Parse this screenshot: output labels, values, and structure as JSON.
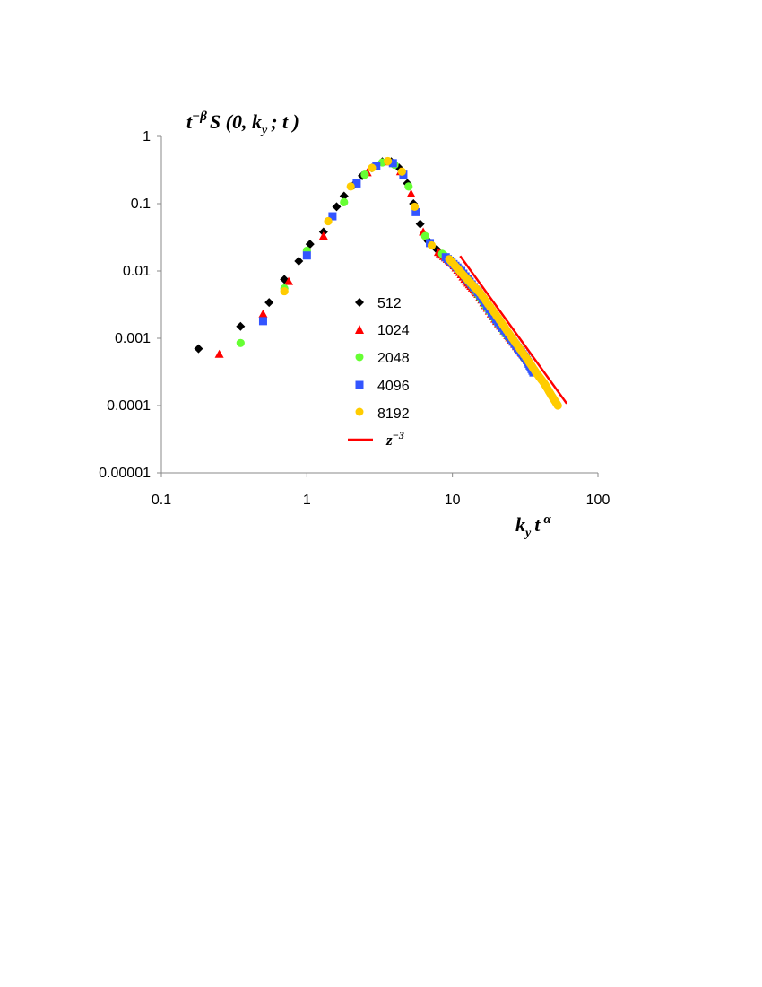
{
  "chart_data": {
    "type": "scatter",
    "xscale": "log",
    "yscale": "log",
    "xlim": [
      0.1,
      100
    ],
    "ylim": [
      1e-05,
      1
    ],
    "x_ticks": [
      "0.1",
      "1",
      "10",
      "100"
    ],
    "y_ticks": [
      "0.00001",
      "0.0001",
      "0.001",
      "0.01",
      "0.1",
      "1"
    ],
    "ylabel": {
      "base": "t",
      "sup": "−β",
      "rest": "S (0, k",
      "sub": "y",
      "end": "; t )"
    },
    "xlabel": {
      "a": "k",
      "sub": "y",
      "b": "t",
      "sup": "α"
    },
    "legend_position": "center",
    "grid": false,
    "series": [
      {
        "name": "512",
        "marker": "diamond",
        "color": "#000000",
        "points": [
          [
            0.18,
            0.0007
          ],
          [
            0.35,
            0.0015
          ],
          [
            0.55,
            0.0034
          ],
          [
            0.7,
            0.0075
          ],
          [
            0.88,
            0.014
          ],
          [
            1.05,
            0.025
          ],
          [
            1.3,
            0.038
          ],
          [
            1.6,
            0.09
          ],
          [
            1.8,
            0.13
          ],
          [
            2.1,
            0.19
          ],
          [
            2.4,
            0.26
          ],
          [
            2.8,
            0.34
          ],
          [
            3.3,
            0.42
          ],
          [
            3.8,
            0.42
          ],
          [
            4.3,
            0.34
          ],
          [
            4.9,
            0.2
          ],
          [
            5.4,
            0.1
          ],
          [
            6.0,
            0.05
          ],
          [
            6.8,
            0.028
          ],
          [
            7.8,
            0.021
          ],
          [
            9.0,
            0.016
          ],
          [
            10.5,
            0.012
          ],
          [
            13.0,
            0.0065
          ],
          [
            16.0,
            0.0037
          ],
          [
            20.0,
            0.0019
          ],
          [
            25.0,
            0.001
          ],
          [
            30.0,
            0.00055
          ],
          [
            35.0,
            0.00035
          ]
        ]
      },
      {
        "name": "1024",
        "marker": "triangle",
        "color": "#ff0000",
        "points": [
          [
            0.25,
            0.00058
          ],
          [
            0.5,
            0.0023
          ],
          [
            0.75,
            0.007
          ],
          [
            1.3,
            0.033
          ],
          [
            2.6,
            0.29
          ],
          [
            3.5,
            0.42
          ],
          [
            4.4,
            0.3
          ],
          [
            5.2,
            0.14
          ],
          [
            6.3,
            0.038
          ],
          [
            8.0,
            0.019
          ],
          [
            10.0,
            0.013
          ],
          [
            12.5,
            0.007
          ],
          [
            15.0,
            0.0045
          ],
          [
            19.0,
            0.0021
          ],
          [
            24.0,
            0.0011
          ],
          [
            30.0,
            0.0006
          ]
        ]
      },
      {
        "name": "2048",
        "marker": "circle",
        "color": "#66ff33",
        "points": [
          [
            0.35,
            0.00085
          ],
          [
            0.7,
            0.0055
          ],
          [
            1.0,
            0.02
          ],
          [
            1.8,
            0.105
          ],
          [
            2.5,
            0.27
          ],
          [
            3.3,
            0.41
          ],
          [
            4.0,
            0.38
          ],
          [
            5.0,
            0.18
          ],
          [
            6.5,
            0.033
          ],
          [
            8.5,
            0.018
          ],
          [
            11.0,
            0.011
          ],
          [
            14.0,
            0.0055
          ],
          [
            18.0,
            0.0025
          ],
          [
            23.0,
            0.0012
          ],
          [
            29.0,
            0.00065
          ],
          [
            33.0,
            0.00045
          ]
        ]
      },
      {
        "name": "4096",
        "marker": "square",
        "color": "#3355ff",
        "points": [
          [
            0.5,
            0.0018
          ],
          [
            1.0,
            0.017
          ],
          [
            1.5,
            0.065
          ],
          [
            2.2,
            0.2
          ],
          [
            3.0,
            0.36
          ],
          [
            3.9,
            0.4
          ],
          [
            4.6,
            0.27
          ],
          [
            5.6,
            0.075
          ],
          [
            7.0,
            0.026
          ],
          [
            9.0,
            0.016
          ],
          [
            11.5,
            0.01
          ],
          [
            15.0,
            0.0048
          ],
          [
            20.0,
            0.0019
          ],
          [
            26.0,
            0.0009
          ],
          [
            32.0,
            0.0005
          ],
          [
            36.0,
            0.00031
          ]
        ]
      },
      {
        "name": "8192",
        "marker": "circle",
        "color": "#ffcc00",
        "points": [
          [
            0.7,
            0.005
          ],
          [
            1.4,
            0.055
          ],
          [
            2.0,
            0.18
          ],
          [
            2.8,
            0.34
          ],
          [
            3.6,
            0.43
          ],
          [
            4.5,
            0.3
          ],
          [
            5.5,
            0.09
          ],
          [
            7.2,
            0.024
          ],
          [
            9.5,
            0.015
          ],
          [
            12.0,
            0.0085
          ],
          [
            15.5,
            0.0047
          ],
          [
            20.0,
            0.0022
          ],
          [
            25.0,
            0.0011
          ],
          [
            32.0,
            0.00052
          ],
          [
            38.0,
            0.0003
          ],
          [
            43.0,
            0.00021
          ],
          [
            48.0,
            0.00014
          ],
          [
            53.0,
            0.0001
          ]
        ]
      },
      {
        "name": "z^{-3}",
        "type": "line",
        "color": "#ff0000",
        "points": [
          [
            11.3,
            0.0167
          ],
          [
            61.0,
            0.000107
          ]
        ]
      }
    ],
    "legend": [
      {
        "label": "512"
      },
      {
        "label": "1024"
      },
      {
        "label": "2048"
      },
      {
        "label": "4096"
      },
      {
        "label": "8192"
      },
      {
        "label_base": "z",
        "label_sup": "−3"
      }
    ]
  }
}
